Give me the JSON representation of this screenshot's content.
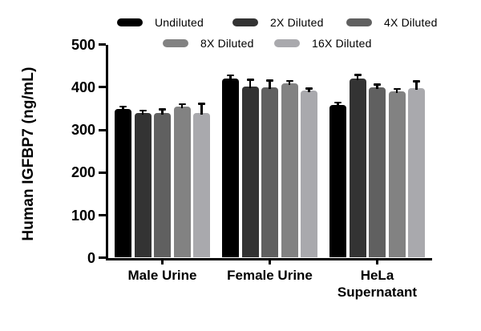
{
  "chart_data": {
    "type": "bar",
    "title": "",
    "xlabel": "",
    "ylabel": "Human IGFBP7 (ng/mL)",
    "ylim": [
      0,
      500
    ],
    "yticks": [
      0,
      100,
      200,
      300,
      400,
      500
    ],
    "grid": false,
    "legend_position": "top",
    "categories": [
      {
        "label": "Male Urine",
        "lines": [
          "Male Urine"
        ]
      },
      {
        "label": "Female Urine",
        "lines": [
          "Female Urine"
        ]
      },
      {
        "label": "HeLa Supernatant",
        "lines": [
          "HeLa",
          "Supernatant"
        ]
      }
    ],
    "series": [
      {
        "name": "Undiluted",
        "color": "#000000",
        "values": [
          348,
          421,
          358
        ],
        "errors": [
          4,
          4,
          3
        ]
      },
      {
        "name": "2X Diluted",
        "color": "#333333",
        "values": [
          340,
          402,
          421
        ],
        "errors": [
          3,
          13,
          5
        ]
      },
      {
        "name": "4X Diluted",
        "color": "#606060",
        "values": [
          339,
          400,
          400
        ],
        "errors": [
          6,
          13,
          4
        ]
      },
      {
        "name": "8X Diluted",
        "color": "#828282",
        "values": [
          355,
          408,
          390
        ],
        "errors": [
          3,
          4,
          3
        ]
      },
      {
        "name": "16X Diluted",
        "color": "#a9a9ad",
        "values": [
          340,
          391,
          398
        ],
        "errors": [
          19,
          3,
          13
        ]
      }
    ],
    "axis_color": "#000000",
    "error_bar_color": "#000000"
  }
}
